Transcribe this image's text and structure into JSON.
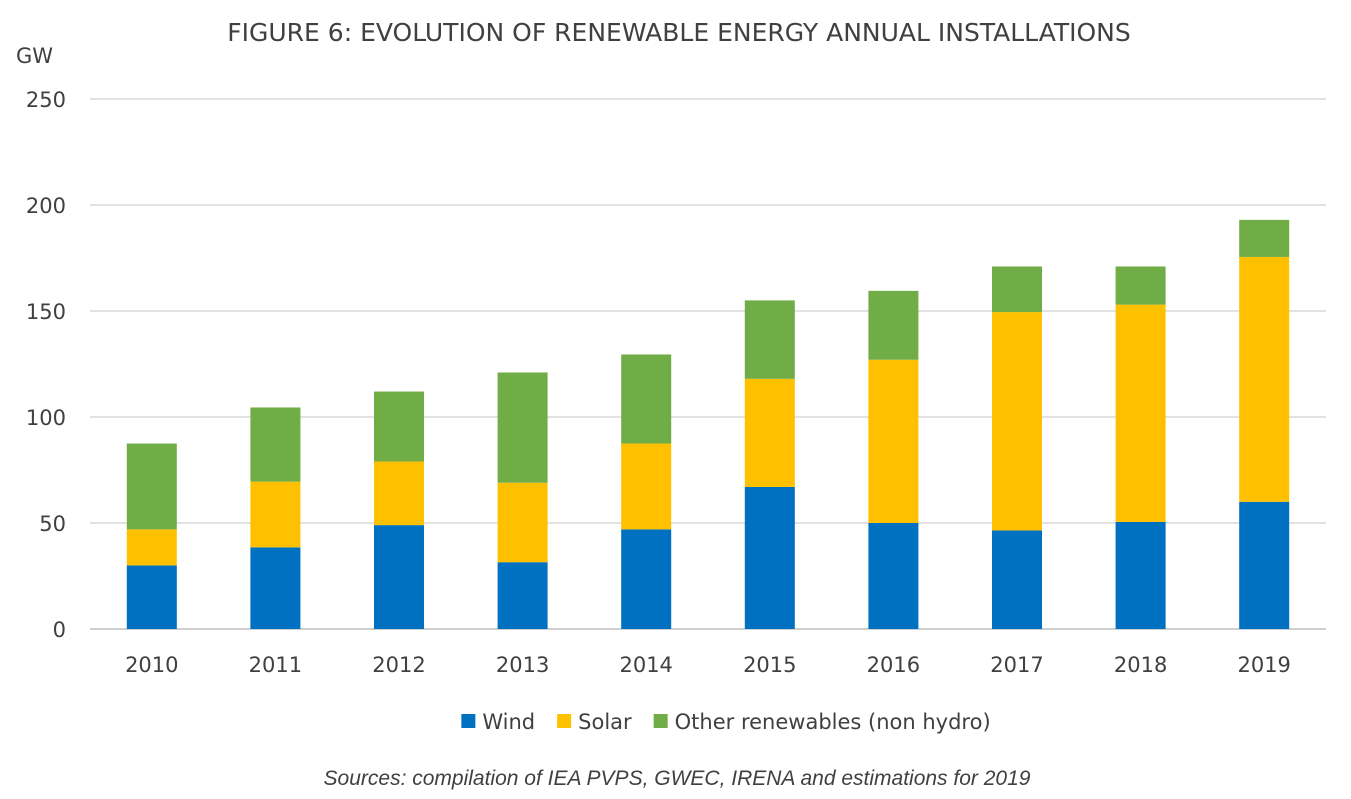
{
  "chart_data": {
    "type": "bar",
    "stacked": true,
    "title": "FIGURE 6: EVOLUTION OF RENEWABLE ENERGY ANNUAL INSTALLATIONS",
    "ylabel": "GW",
    "xlabel": "",
    "ylim": [
      0,
      250
    ],
    "yticks": [
      0,
      50,
      100,
      150,
      200,
      250
    ],
    "grid": true,
    "legend_position": "bottom",
    "categories": [
      "2010",
      "2011",
      "2012",
      "2013",
      "2014",
      "2015",
      "2016",
      "2017",
      "2018",
      "2019"
    ],
    "series": [
      {
        "name": "Wind",
        "color": "#0070c0",
        "values": [
          30,
          38.5,
          49,
          31.5,
          47,
          67,
          50,
          46.5,
          50.5,
          60
        ]
      },
      {
        "name": "Solar",
        "color": "#ffc000",
        "values": [
          17,
          31,
          30,
          37.5,
          40.5,
          51,
          77,
          103,
          102.5,
          115.5
        ]
      },
      {
        "name": "Other renewables (non hydro)",
        "color": "#70ad47",
        "values": [
          40.5,
          35,
          33,
          52,
          42,
          37,
          32.5,
          21.5,
          18,
          17.5
        ]
      }
    ],
    "source_note": "Sources: compilation of IEA PVPS, GWEC, IRENA and estimations for 2019"
  }
}
